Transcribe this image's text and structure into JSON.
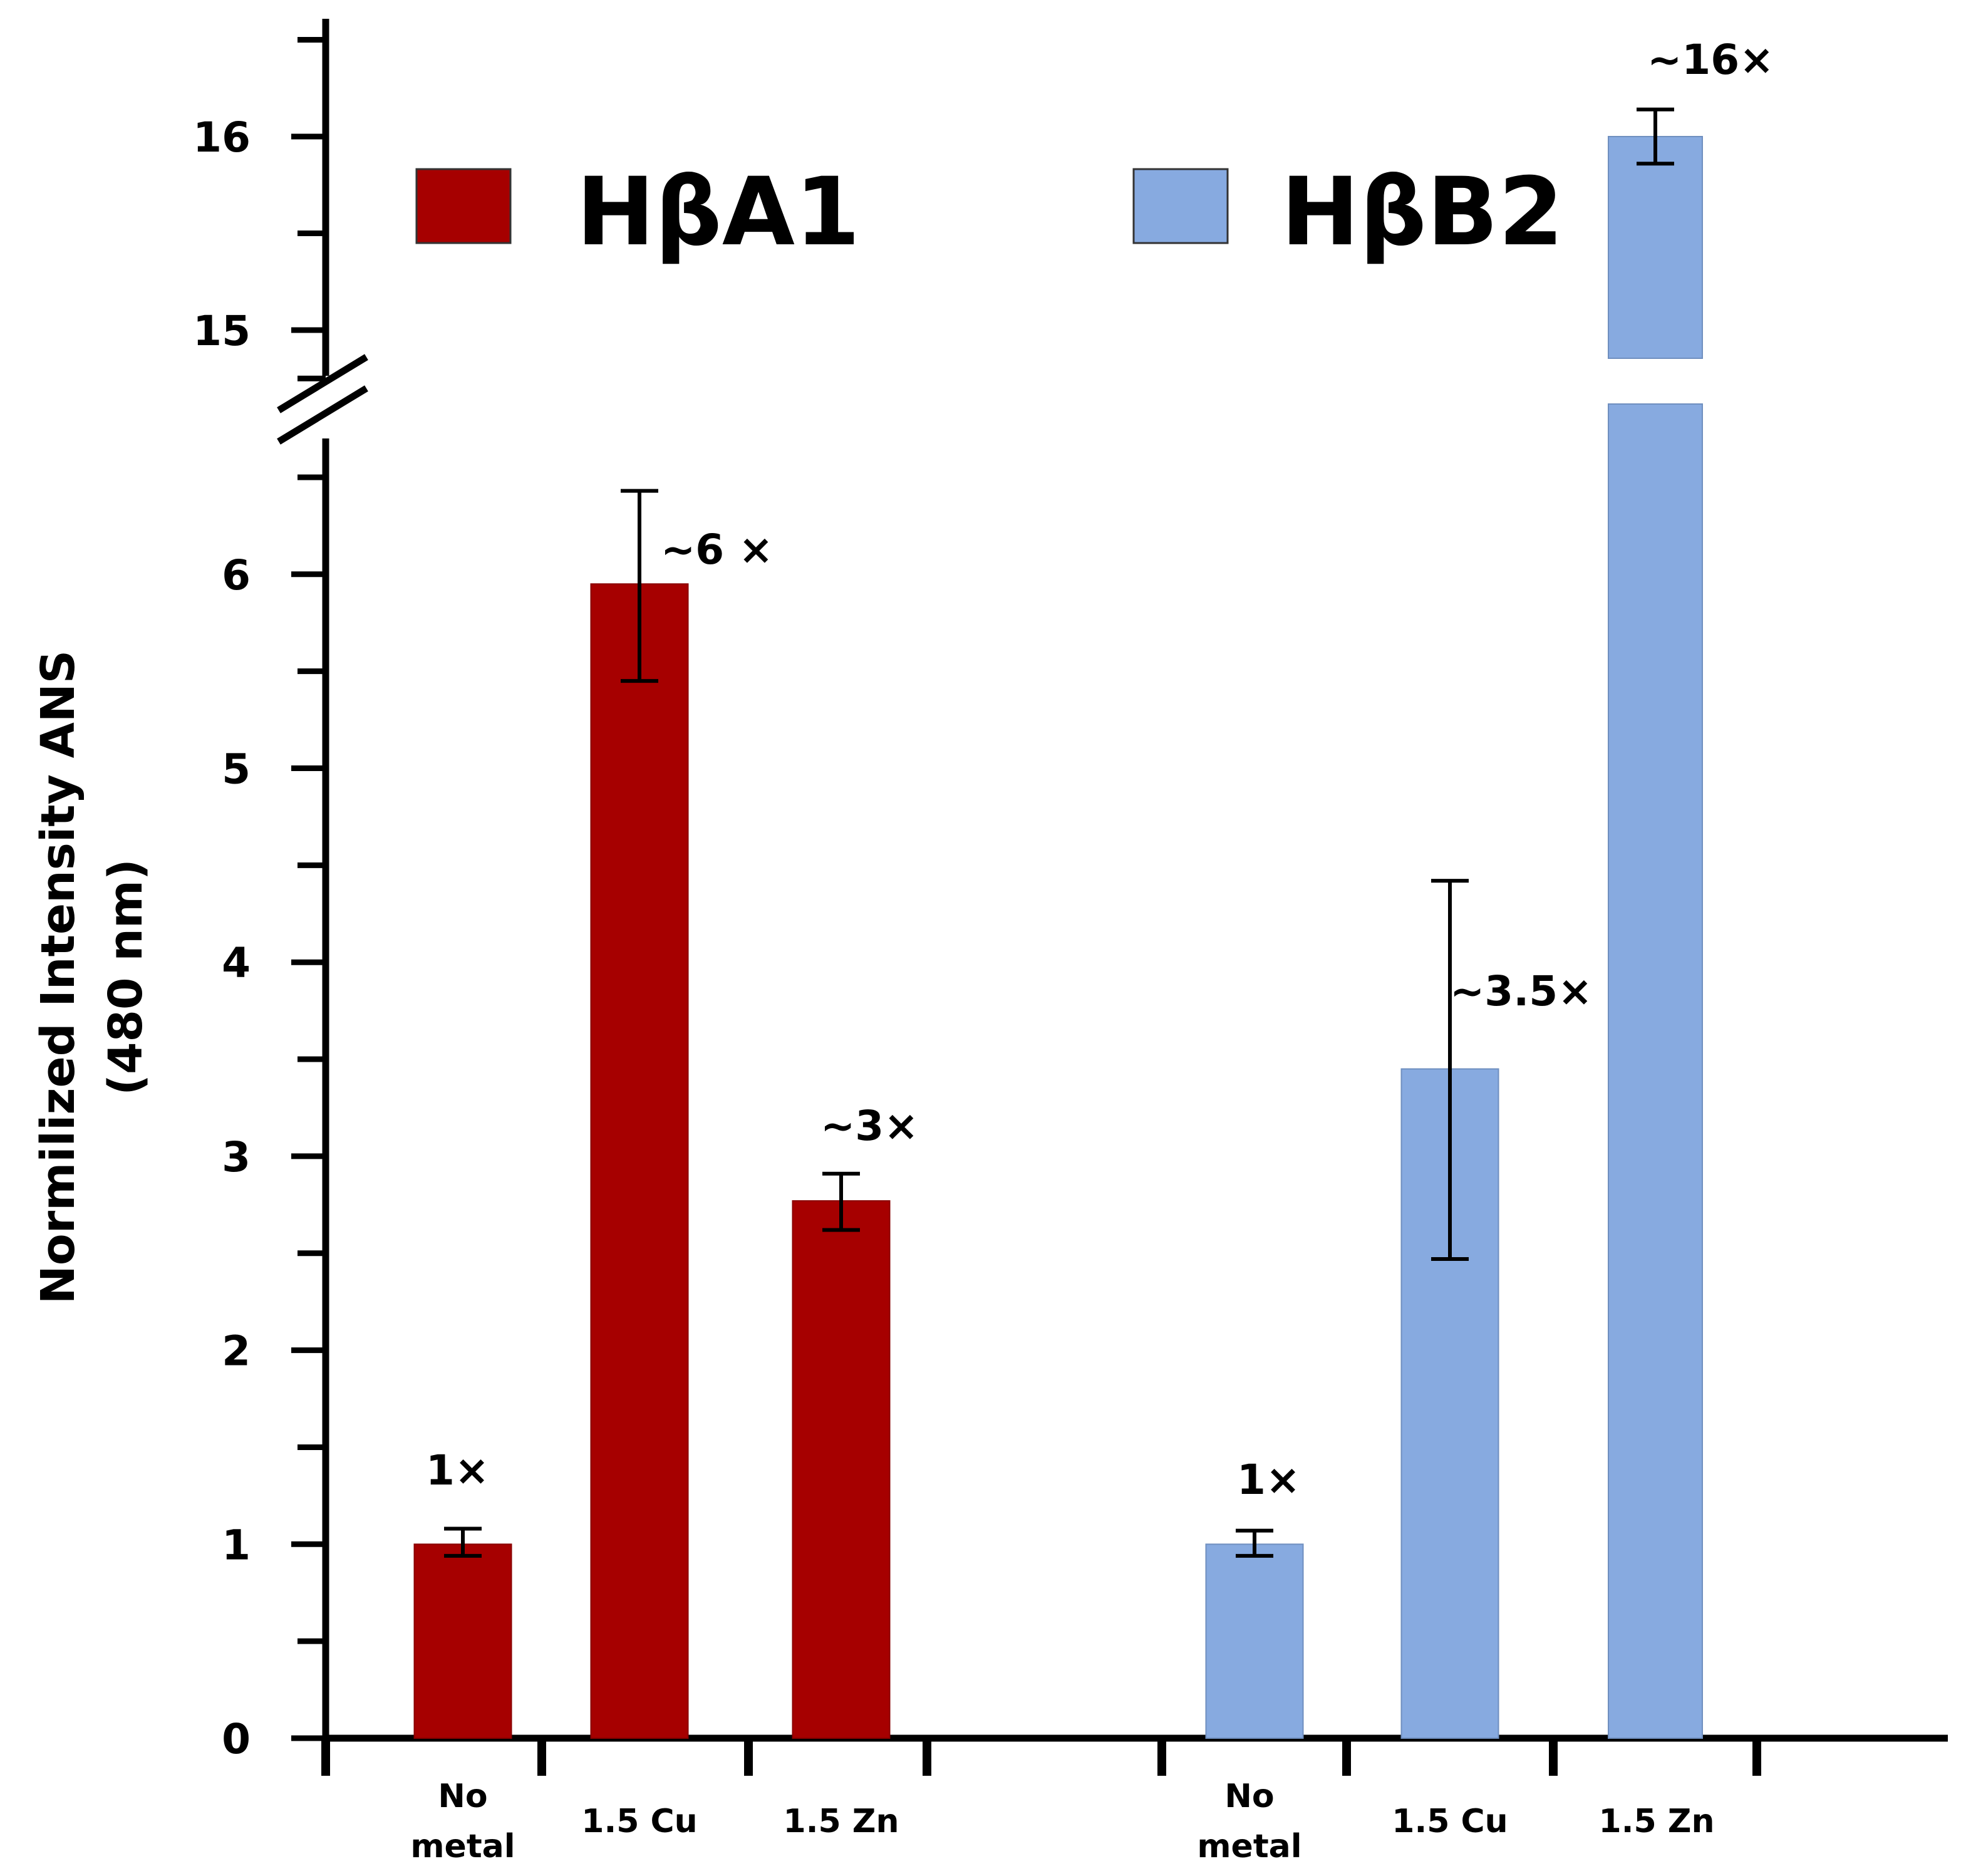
{
  "chart_data": {
    "type": "bar",
    "ylabel": "Normilized Intensity ANS",
    "ylabel_line2": "(480 nm)",
    "y_axis_break": true,
    "y_lower_range": [
      0,
      6.5
    ],
    "y_upper_range": [
      14.8,
      16.5
    ],
    "y_ticks": [
      0,
      1,
      2,
      3,
      4,
      5,
      6,
      15,
      16
    ],
    "legend": [
      {
        "name": "HβA1",
        "color": "#a60000"
      },
      {
        "name": "HβB2",
        "color": "#87aae0"
      }
    ],
    "groups": [
      {
        "series": "HβA1",
        "color": "#a60000",
        "bars": [
          {
            "category": [
              "No",
              "metal"
            ],
            "value": 1.0,
            "err_low": 0.94,
            "err_high": 1.08,
            "annotation": "1×"
          },
          {
            "category": [
              "1.5 Cu"
            ],
            "value": 5.95,
            "err_low": 5.45,
            "err_high": 6.43,
            "annotation": "~6 ×"
          },
          {
            "category": [
              "1.5 Zn"
            ],
            "value": 2.77,
            "err_low": 2.62,
            "err_high": 2.91,
            "annotation": "~3×"
          }
        ]
      },
      {
        "series": "HβB2",
        "color": "#87aae0",
        "bars": [
          {
            "category": [
              "No",
              "metal"
            ],
            "value": 1.0,
            "err_low": 0.94,
            "err_high": 1.07,
            "annotation": "1×"
          },
          {
            "category": [
              "1.5 Cu"
            ],
            "value": 3.45,
            "err_low": 2.47,
            "err_high": 4.42,
            "annotation": "~3.5×"
          },
          {
            "category": [
              "1.5 Zn"
            ],
            "value": 16.0,
            "err_low": 15.86,
            "err_high": 16.14,
            "annotation": "~16×"
          }
        ]
      }
    ]
  }
}
